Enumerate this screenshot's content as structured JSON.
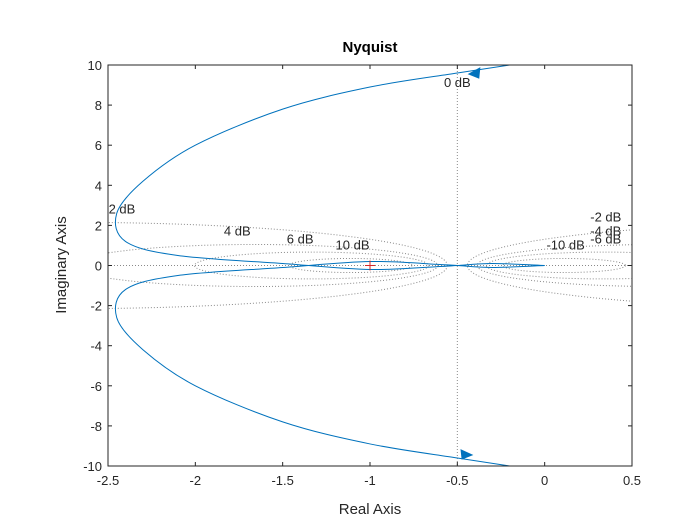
{
  "chart_data": {
    "type": "line",
    "title": "Nyquist",
    "xlabel": "Real Axis",
    "ylabel": "Imaginary Axis",
    "xlim": [
      -2.5,
      0.5
    ],
    "ylim": [
      -10,
      10
    ],
    "x_ticks": [
      -2.5,
      -2,
      -1.5,
      -1,
      -0.5,
      0,
      0.5
    ],
    "x_tick_labels": [
      "-2.5",
      "-2",
      "-1.5",
      "-1",
      "-0.5",
      "0",
      "0.5"
    ],
    "y_ticks": [
      10,
      8,
      6,
      4,
      2,
      0,
      -2,
      -4,
      -6,
      -8,
      -10
    ],
    "y_tick_labels": [
      "10",
      "8",
      "6",
      "4",
      "2",
      "0",
      "-2",
      "-4",
      "-6",
      "-8",
      "-10"
    ],
    "grid": "M-circles (dotted)",
    "series_color": "#0072BD",
    "critical_point": {
      "x": -1,
      "y": 0,
      "marker": "+",
      "color": "#D62728"
    },
    "nyquist_curve_upper": [
      {
        "x": -0.2,
        "y": 10.0
      },
      {
        "x": -0.5,
        "y": 9.6
      },
      {
        "x": -1.0,
        "y": 8.9
      },
      {
        "x": -1.5,
        "y": 7.8
      },
      {
        "x": -2.0,
        "y": 6.0
      },
      {
        "x": -2.3,
        "y": 4.2
      },
      {
        "x": -2.45,
        "y": 2.6
      },
      {
        "x": -2.4,
        "y": 1.2
      },
      {
        "x": -2.1,
        "y": 0.5
      },
      {
        "x": -1.5,
        "y": 0.1
      },
      {
        "x": -1.0,
        "y": -0.2
      },
      {
        "x": -0.6,
        "y": -0.05
      },
      {
        "x": -0.5,
        "y": 0.0
      },
      {
        "x": -0.3,
        "y": 0.1
      },
      {
        "x": 0.0,
        "y": 0.0
      }
    ],
    "nyquist_curve_lower": [
      {
        "x": 0.0,
        "y": 0.0
      },
      {
        "x": -0.3,
        "y": -0.1
      },
      {
        "x": -0.5,
        "y": 0.0
      },
      {
        "x": -0.6,
        "y": 0.05
      },
      {
        "x": -1.0,
        "y": 0.2
      },
      {
        "x": -1.5,
        "y": -0.1
      },
      {
        "x": -2.1,
        "y": -0.5
      },
      {
        "x": -2.4,
        "y": -1.2
      },
      {
        "x": -2.45,
        "y": -2.6
      },
      {
        "x": -2.3,
        "y": -4.2
      },
      {
        "x": -2.0,
        "y": -6.0
      },
      {
        "x": -1.5,
        "y": -7.8
      },
      {
        "x": -1.0,
        "y": -8.9
      },
      {
        "x": -0.5,
        "y": -9.6
      },
      {
        "x": -0.2,
        "y": -10.0
      }
    ],
    "arrows": [
      {
        "x": -0.4,
        "y": 9.6,
        "direction": "left"
      },
      {
        "x": -0.45,
        "y": -9.4,
        "direction": "right"
      }
    ],
    "m_circle_labels": [
      {
        "text": "0 dB",
        "x": -0.5,
        "y": 8.9
      },
      {
        "text": "2 dB",
        "x": -2.42,
        "y": 2.6
      },
      {
        "text": "4 dB",
        "x": -1.76,
        "y": 1.5
      },
      {
        "text": "6 dB",
        "x": -1.4,
        "y": 1.1
      },
      {
        "text": "10 dB",
        "x": -1.1,
        "y": 0.8
      },
      {
        "text": "-2 dB",
        "x": 0.35,
        "y": 2.2
      },
      {
        "text": "-4 dB",
        "x": 0.35,
        "y": 1.5
      },
      {
        "text": "-6 dB",
        "x": 0.35,
        "y": 1.1
      },
      {
        "text": "-10 dB",
        "x": 0.12,
        "y": 0.8
      }
    ],
    "m_circles_db": [
      2,
      4,
      6,
      10,
      -2,
      -4,
      -6,
      -10
    ]
  }
}
